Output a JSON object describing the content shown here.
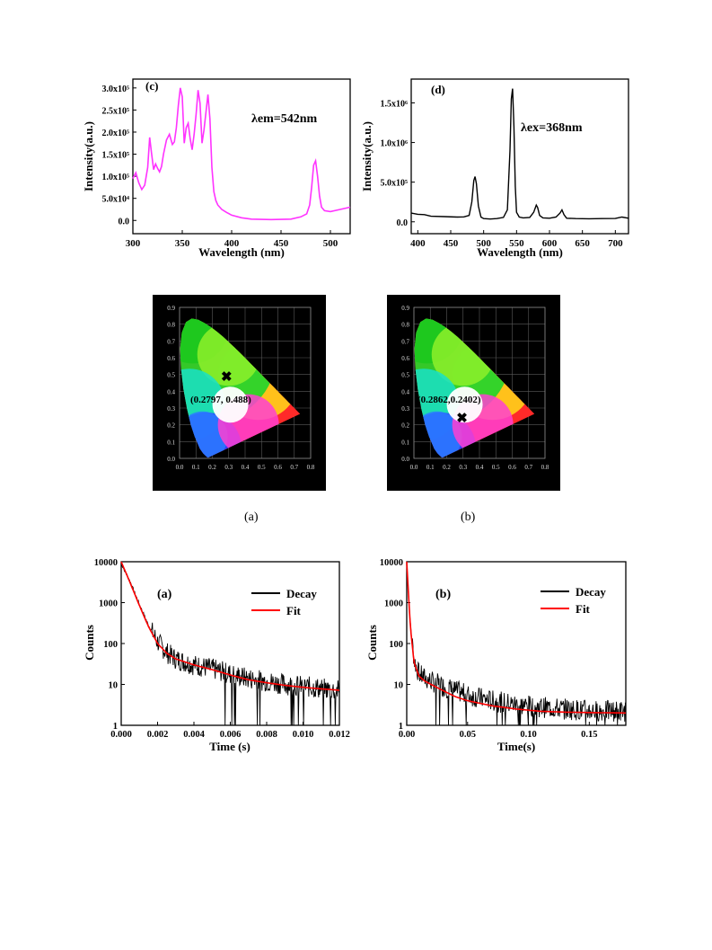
{
  "figure_c": {
    "panel_label": "(c)",
    "annotation": "λem=542nm",
    "chart_data": {
      "type": "line",
      "xlabel": "Wavelength (nm)",
      "ylabel": "Intensity(a.u.)",
      "xlim": [
        300,
        520
      ],
      "ylim": [
        -30000,
        320000
      ],
      "x_ticks": [
        300,
        350,
        400,
        450,
        500
      ],
      "y_ticks": [
        {
          "value": 0,
          "label": "0.0"
        },
        {
          "value": 50000,
          "label": "5.0x10⁴"
        },
        {
          "value": 100000,
          "label": "1.0x10⁵"
        },
        {
          "value": 150000,
          "label": "1.5x10⁵"
        },
        {
          "value": 200000,
          "label": "2.0x10⁵"
        },
        {
          "value": 250000,
          "label": "2.5x10⁵"
        },
        {
          "value": 300000,
          "label": "3.0x10⁵"
        }
      ],
      "color": "#ff33ff",
      "x": [
        300,
        303,
        306,
        309,
        312,
        315,
        317,
        319,
        321,
        323,
        325,
        327,
        329,
        331,
        334,
        337,
        340,
        342,
        344,
        346,
        348,
        350,
        352,
        354,
        356,
        358,
        360,
        362,
        364,
        366,
        368,
        370,
        372,
        374,
        376,
        378,
        380,
        382,
        384,
        386,
        390,
        395,
        400,
        410,
        420,
        440,
        460,
        470,
        476,
        479,
        481,
        483,
        485,
        487,
        489,
        491,
        494,
        500,
        510,
        520
      ],
      "y": [
        95000,
        108000,
        85000,
        70000,
        80000,
        120000,
        188000,
        150000,
        115000,
        128000,
        118000,
        110000,
        122000,
        150000,
        182000,
        195000,
        172000,
        178000,
        210000,
        260000,
        300000,
        280000,
        175000,
        210000,
        220000,
        185000,
        160000,
        195000,
        240000,
        295000,
        265000,
        175000,
        205000,
        245000,
        285000,
        230000,
        120000,
        65000,
        45000,
        35000,
        25000,
        18000,
        12000,
        6000,
        3000,
        2000,
        3000,
        8000,
        15000,
        35000,
        75000,
        125000,
        135000,
        100000,
        55000,
        30000,
        22000,
        20000,
        25000,
        30000
      ]
    }
  },
  "figure_d": {
    "panel_label": "(d)",
    "annotation": "λex=368nm",
    "chart_data": {
      "type": "line",
      "xlabel": "Wavelength (nm)",
      "ylabel": "Intensity(a.u.)",
      "xlim": [
        390,
        720
      ],
      "ylim": [
        -150000,
        1800000
      ],
      "x_ticks": [
        400,
        450,
        500,
        550,
        600,
        650,
        700
      ],
      "y_ticks": [
        {
          "value": 0,
          "label": "0.0"
        },
        {
          "value": 500000,
          "label": "5.0x10⁵"
        },
        {
          "value": 1000000,
          "label": "1.0x10⁶"
        },
        {
          "value": 1500000,
          "label": "1.5x10⁶"
        }
      ],
      "color": "#000000",
      "x": [
        390,
        400,
        410,
        420,
        440,
        460,
        470,
        478,
        482,
        485,
        487,
        489,
        492,
        496,
        500,
        510,
        520,
        530,
        536,
        540,
        542,
        544,
        546,
        548,
        550,
        554,
        560,
        570,
        576,
        580,
        582,
        585,
        590,
        600,
        610,
        616,
        619,
        622,
        626,
        640,
        660,
        680,
        700,
        710,
        720
      ],
      "y": [
        110000,
        95000,
        90000,
        70000,
        65000,
        60000,
        62000,
        80000,
        250000,
        520000,
        570000,
        480000,
        200000,
        60000,
        40000,
        35000,
        40000,
        55000,
        150000,
        900000,
        1550000,
        1680000,
        1200000,
        450000,
        120000,
        60000,
        50000,
        55000,
        120000,
        210000,
        180000,
        80000,
        50000,
        45000,
        60000,
        110000,
        150000,
        90000,
        45000,
        40000,
        38000,
        40000,
        42000,
        60000,
        45000
      ]
    }
  },
  "cie_a": {
    "coord_label": "(0.2797,  0.488)",
    "chart_data": {
      "type": "scatter",
      "x_ticks": [
        "0.0",
        "0.1",
        "0.2",
        "0.3",
        "0.4",
        "0.5",
        "0.6",
        "0.7",
        "0.8"
      ],
      "y_ticks": [
        "0.0",
        "0.1",
        "0.2",
        "0.3",
        "0.4",
        "0.5",
        "0.6",
        "0.7",
        "0.8",
        "0.9"
      ],
      "xlim": [
        0,
        0.8
      ],
      "ylim": [
        0,
        0.9
      ],
      "point": {
        "x": 0.2797,
        "y": 0.488
      }
    }
  },
  "cie_b": {
    "coord_label": "(0.2862,0.2402)",
    "chart_data": {
      "type": "scatter",
      "x_ticks": [
        "0.0",
        "0.1",
        "0.2",
        "0.3",
        "0.4",
        "0.5",
        "0.6",
        "0.7",
        "0.8"
      ],
      "y_ticks": [
        "0.0",
        "0.1",
        "0.2",
        "0.3",
        "0.4",
        "0.5",
        "0.6",
        "0.7",
        "0.8",
        "0.9"
      ],
      "xlim": [
        0,
        0.8
      ],
      "ylim": [
        0,
        0.9
      ],
      "point": {
        "x": 0.2862,
        "y": 0.2402
      }
    }
  },
  "captions": {
    "a": "(a)",
    "b": "(b)"
  },
  "decay_a": {
    "panel_label": "(a)",
    "legend": [
      {
        "name": "Decay",
        "color": "#000000"
      },
      {
        "name": "Fit",
        "color": "#ff0000"
      }
    ],
    "chart_data": {
      "type": "line",
      "xlabel": "Time (s)",
      "ylabel": "Counts",
      "scale": "log-y",
      "xlim": [
        0,
        0.012
      ],
      "ylim": [
        1,
        10000
      ],
      "x_ticks": [
        "0.000",
        "0.002",
        "0.004",
        "0.006",
        "0.008",
        "0.010",
        "0.012"
      ],
      "y_ticks": [
        "1",
        "10",
        "100",
        "1000",
        "10000"
      ],
      "series": [
        {
          "name": "Decay",
          "x": [
            0,
            0.0005,
            0.001,
            0.0015,
            0.002,
            0.0025,
            0.003,
            0.004,
            0.005,
            0.006,
            0.007,
            0.008,
            0.009,
            0.01,
            0.011,
            0.012
          ],
          "y": [
            9000,
            3200,
            900,
            280,
            110,
            60,
            42,
            30,
            24,
            18,
            14,
            12,
            10,
            9,
            8,
            7
          ]
        },
        {
          "name": "Fit",
          "x": [
            0,
            0.0005,
            0.001,
            0.0015,
            0.002,
            0.0025,
            0.003,
            0.004,
            0.005,
            0.006,
            0.007,
            0.008,
            0.009,
            0.01,
            0.011,
            0.012
          ],
          "y": [
            10000,
            3000,
            850,
            260,
            100,
            58,
            42,
            30,
            23,
            17,
            13,
            11,
            9.5,
            8.5,
            7.8,
            7.2
          ]
        }
      ]
    }
  },
  "decay_b": {
    "panel_label": "(b)",
    "legend": [
      {
        "name": "Decay",
        "color": "#000000"
      },
      {
        "name": "Fit",
        "color": "#ff0000"
      }
    ],
    "chart_data": {
      "type": "line",
      "xlabel": "Time(s)",
      "ylabel": "Counts",
      "scale": "log-y",
      "xlim": [
        0,
        0.18
      ],
      "ylim": [
        1,
        10000
      ],
      "x_ticks": [
        "0.00",
        "0.05",
        "0.10",
        "0.15"
      ],
      "y_ticks": [
        "1",
        "10",
        "100",
        "1000",
        "10000"
      ],
      "series": [
        {
          "name": "Decay",
          "x": [
            0,
            0.003,
            0.006,
            0.01,
            0.015,
            0.02,
            0.03,
            0.04,
            0.05,
            0.07,
            0.09,
            0.11,
            0.13,
            0.15,
            0.18
          ],
          "y": [
            9000,
            300,
            40,
            18,
            14,
            12,
            9,
            7,
            5.5,
            4,
            3.2,
            2.8,
            2.5,
            2.3,
            2.2
          ]
        },
        {
          "name": "Fit",
          "x": [
            0,
            0.003,
            0.006,
            0.01,
            0.015,
            0.02,
            0.03,
            0.04,
            0.05,
            0.07,
            0.09,
            0.11,
            0.13,
            0.15,
            0.18
          ],
          "y": [
            10000,
            250,
            35,
            16,
            12,
            10,
            7,
            5,
            4,
            3,
            2.5,
            2.2,
            2.1,
            2.05,
            2.0
          ]
        }
      ]
    }
  }
}
